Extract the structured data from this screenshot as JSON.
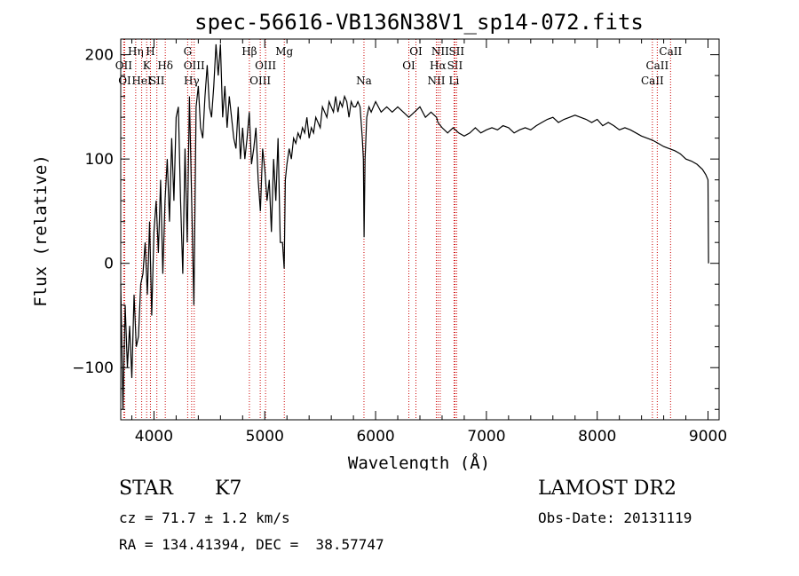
{
  "chart_data": {
    "type": "line",
    "title": "spec-56616-VB136N38V1_sp14-072.fits",
    "xlabel": "Wavelength (Å)",
    "ylabel": "Flux (relative)",
    "xlim": [
      3700,
      9100
    ],
    "ylim": [
      -150,
      215
    ],
    "xticks": [
      4000,
      5000,
      6000,
      7000,
      8000,
      9000
    ],
    "yticks": [
      -100,
      0,
      100,
      200
    ],
    "grid": false,
    "line_color": "#000000",
    "marker_line_color": "#cc0000",
    "series": [
      {
        "x": [
          3700,
          3720,
          3740,
          3760,
          3780,
          3800,
          3820,
          3840,
          3860,
          3880,
          3900,
          3920,
          3940,
          3960,
          3980,
          4000,
          4020,
          4040,
          4060,
          4080,
          4100,
          4120,
          4140,
          4160,
          4180,
          4200,
          4220,
          4240,
          4260,
          4280,
          4300,
          4320,
          4340,
          4360,
          4380,
          4400,
          4420,
          4440,
          4460,
          4480,
          4500,
          4520,
          4540,
          4560,
          4580,
          4600,
          4620,
          4640,
          4660,
          4680,
          4700,
          4720,
          4740,
          4760,
          4780,
          4800,
          4820,
          4840,
          4860,
          4880,
          4900,
          4920,
          4940,
          4960,
          4980,
          5000,
          5020,
          5040,
          5060,
          5080,
          5100,
          5120,
          5140,
          5160,
          5175,
          5185,
          5200,
          5220,
          5240,
          5260,
          5280,
          5300,
          5320,
          5340,
          5360,
          5380,
          5400,
          5420,
          5440,
          5460,
          5480,
          5500,
          5520,
          5540,
          5560,
          5580,
          5600,
          5620,
          5640,
          5660,
          5680,
          5700,
          5720,
          5740,
          5760,
          5780,
          5800,
          5820,
          5840,
          5860,
          5880,
          5890,
          5896,
          5905,
          5920,
          5940,
          5960,
          5980,
          6000,
          6050,
          6100,
          6150,
          6200,
          6250,
          6300,
          6350,
          6400,
          6450,
          6500,
          6550,
          6563,
          6600,
          6650,
          6700,
          6750,
          6800,
          6850,
          6900,
          6950,
          7000,
          7050,
          7100,
          7150,
          7200,
          7250,
          7300,
          7350,
          7400,
          7450,
          7500,
          7550,
          7600,
          7650,
          7700,
          7750,
          7800,
          7850,
          7900,
          7950,
          8000,
          8050,
          8100,
          8150,
          8200,
          8250,
          8300,
          8350,
          8400,
          8450,
          8500,
          8550,
          8600,
          8650,
          8700,
          8750,
          8800,
          8850,
          8900,
          8950,
          8980,
          9000,
          9005
        ],
        "y": [
          -20,
          -140,
          -40,
          -100,
          -60,
          -110,
          -30,
          -80,
          -70,
          -20,
          -10,
          20,
          -30,
          40,
          -50,
          30,
          60,
          10,
          80,
          -10,
          60,
          100,
          40,
          120,
          60,
          140,
          150,
          60,
          -10,
          110,
          20,
          160,
          60,
          -40,
          150,
          170,
          130,
          120,
          160,
          190,
          150,
          140,
          170,
          210,
          180,
          210,
          140,
          170,
          130,
          160,
          140,
          120,
          110,
          150,
          100,
          130,
          100,
          120,
          145,
          95,
          110,
          130,
          80,
          50,
          110,
          90,
          60,
          80,
          30,
          100,
          60,
          120,
          20,
          20,
          -5,
          80,
          95,
          110,
          100,
          120,
          115,
          125,
          120,
          130,
          125,
          140,
          120,
          130,
          125,
          140,
          135,
          130,
          150,
          145,
          140,
          155,
          150,
          145,
          160,
          145,
          155,
          150,
          160,
          155,
          140,
          155,
          150,
          150,
          155,
          150,
          120,
          100,
          25,
          100,
          140,
          150,
          145,
          150,
          155,
          145,
          150,
          145,
          150,
          145,
          140,
          145,
          150,
          140,
          145,
          140,
          135,
          130,
          125,
          130,
          125,
          122,
          125,
          130,
          125,
          128,
          130,
          128,
          132,
          130,
          125,
          128,
          130,
          128,
          132,
          135,
          138,
          140,
          135,
          138,
          140,
          142,
          140,
          138,
          135,
          138,
          132,
          135,
          132,
          128,
          130,
          128,
          125,
          122,
          120,
          118,
          115,
          112,
          110,
          108,
          105,
          100,
          98,
          95,
          90,
          85,
          80,
          0
        ]
      }
    ],
    "line_markers": [
      {
        "wl": 3727,
        "label": "OII",
        "row": 2
      },
      {
        "wl": 3736,
        "label": "OI",
        "row": 3
      },
      {
        "wl": 3835,
        "label": "Hη",
        "row": 1
      },
      {
        "wl": 3889,
        "label": "HeI",
        "row": 3
      },
      {
        "wl": 3934,
        "label": "K",
        "row": 2
      },
      {
        "wl": 3968,
        "label": "H",
        "row": 1
      },
      {
        "wl": 4026,
        "label": "SII",
        "row": 3
      },
      {
        "wl": 4102,
        "label": "Hδ",
        "row": 2
      },
      {
        "wl": 4304,
        "label": "G",
        "row": 1
      },
      {
        "wl": 4340,
        "label": "Hγ",
        "row": 3
      },
      {
        "wl": 4363,
        "label": "OIII",
        "row": 2
      },
      {
        "wl": 4861,
        "label": "Hβ",
        "row": 1
      },
      {
        "wl": 4959,
        "label": "OIII",
        "row": 3
      },
      {
        "wl": 5007,
        "label": "OIII",
        "row": 2
      },
      {
        "wl": 5176,
        "label": "Mg",
        "row": 1
      },
      {
        "wl": 5895,
        "label": "Na",
        "row": 3
      },
      {
        "wl": 6300,
        "label": "OI",
        "row": 2
      },
      {
        "wl": 6364,
        "label": "OI",
        "row": 1
      },
      {
        "wl": 6548,
        "label": "NII",
        "row": 3
      },
      {
        "wl": 6563,
        "label": "Hα",
        "row": 2
      },
      {
        "wl": 6583,
        "label": "NII",
        "row": 1
      },
      {
        "wl": 6716,
        "label": "SII",
        "row": 2
      },
      {
        "wl": 6731,
        "label": "SII",
        "row": 1
      },
      {
        "wl": 6708,
        "label": "Li",
        "row": 3
      },
      {
        "wl": 8498,
        "label": "CaII",
        "row": 3
      },
      {
        "wl": 8542,
        "label": "CaII",
        "row": 2
      },
      {
        "wl": 8662,
        "label": "CaII",
        "row": 1
      }
    ]
  },
  "info": {
    "object_class": "STAR",
    "subclass": "K7",
    "survey": "LAMOST DR2",
    "cz": "cz = 71.7 ± 1.2 km/s",
    "obs_date": "Obs-Date: 20131119",
    "radec": "RA = 134.41394, DEC =  38.57747"
  }
}
